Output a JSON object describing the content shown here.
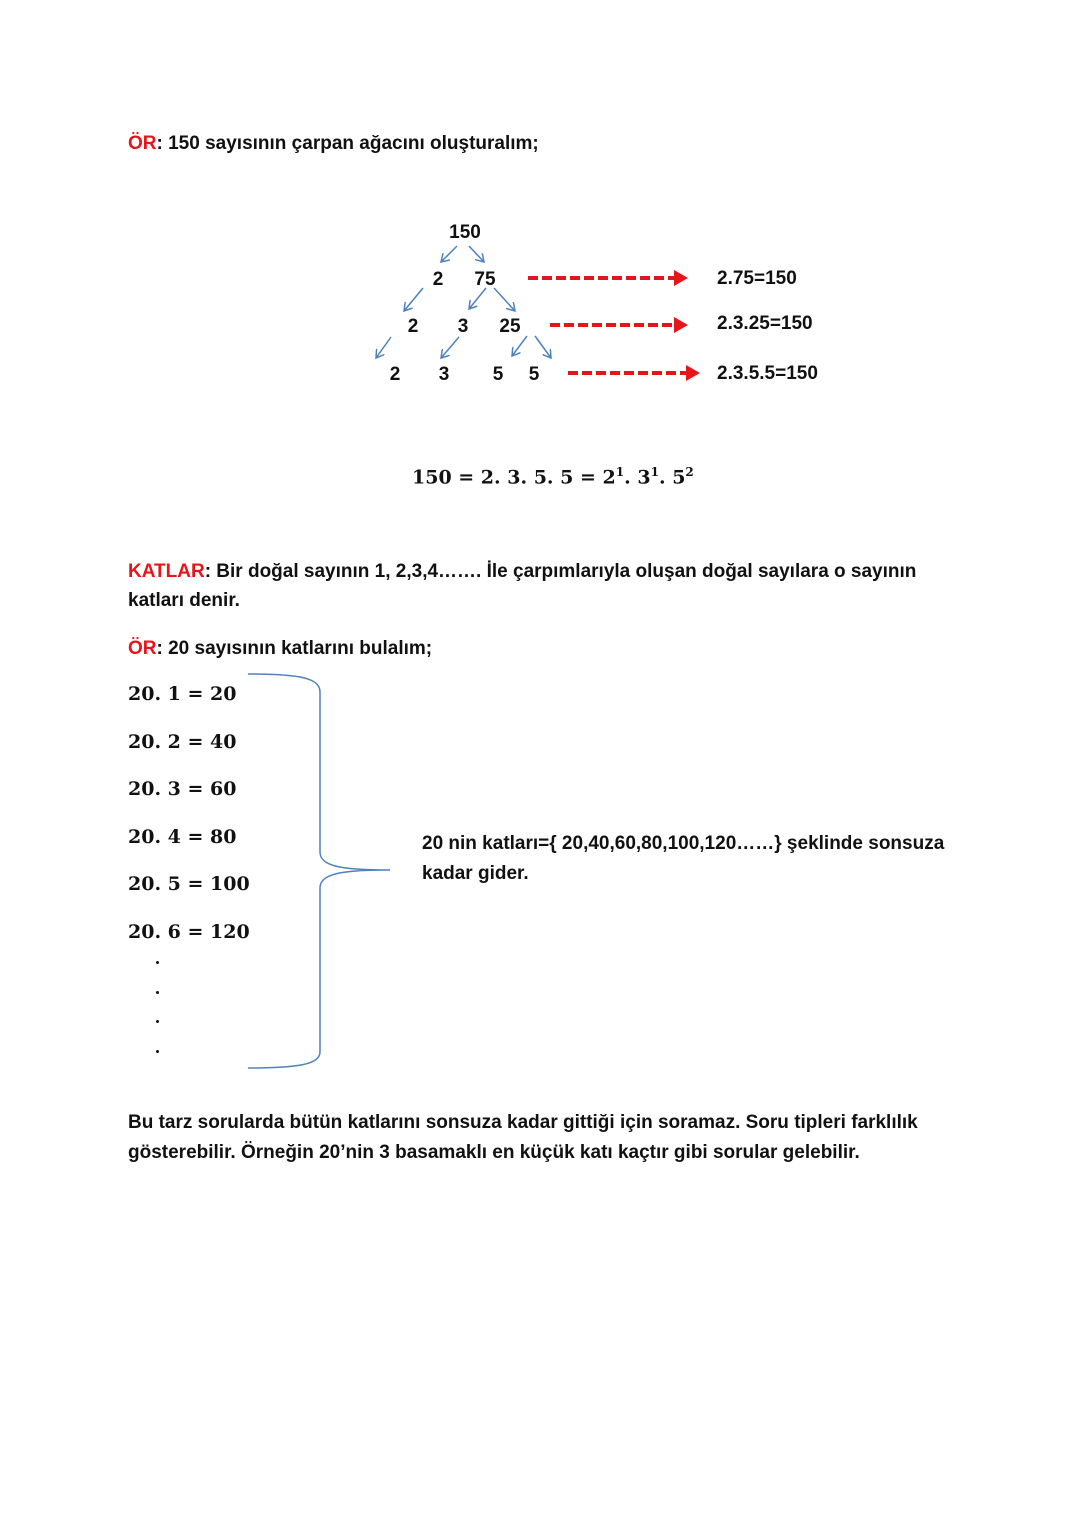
{
  "example1": {
    "label": "ÖR",
    "text": ":  150 sayısının çarpan ağacını oluşturalım;"
  },
  "tree": {
    "root": "150",
    "row2": [
      "2",
      "75"
    ],
    "row3": [
      "2",
      "3",
      "25"
    ],
    "row4": [
      "2",
      "3",
      "5",
      "5"
    ],
    "results": [
      "2.75=150",
      "2.3.25=150",
      "2.3.5.5=150"
    ],
    "arrow_color": "#e8141b",
    "branch_color": "#4f81bd"
  },
  "equation": {
    "lhs": "150 = 2. 3. 5. 5 = ",
    "b1": "2",
    "e1": "1",
    "b2": "3",
    "e2": "1",
    "b3": "5",
    "e3": "2"
  },
  "katlar": {
    "label": "KATLAR",
    "line1": ": Bir doğal sayının 1, 2,3,4……. İle çarpımlarıyla oluşan doğal sayılara o sayının",
    "line2": "katları denir."
  },
  "example2": {
    "label": "ÖR",
    "text": ":  20 sayısının katlarını bulalım;"
  },
  "multiples": [
    "20. 1 = 20",
    "20. 2 = 40",
    "20. 3 = 60",
    "20. 4 = 80",
    "20. 5 = 100",
    "20. 6 = 120"
  ],
  "brace_note": {
    "line1": "20 nin katları={ 20,40,60,80,100,120……}  şeklinde sonsuza",
    "line2": "kadar gider."
  },
  "closing": {
    "line1": "Bu tarz sorularda bütün katlarını sonsuza kadar gittiği için soramaz.  Soru tipleri farklılık",
    "line2": "gösterebilir. Örneğin 20’nin 3 basamaklı en küçük katı kaçtır gibi sorular gelebilir."
  }
}
